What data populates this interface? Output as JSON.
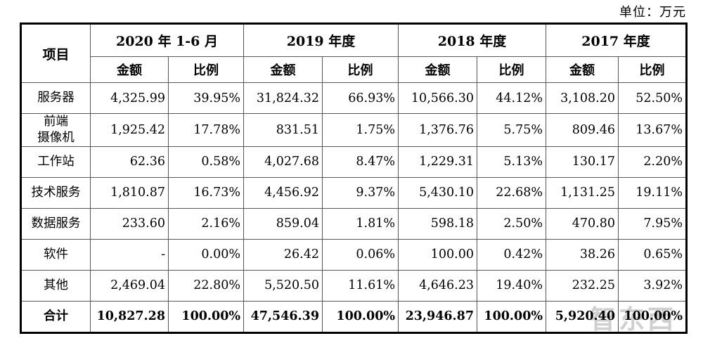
{
  "unit_label": "单位：万元",
  "watermark_text": "智东西",
  "colors": {
    "outer_border": "#000000",
    "inner_border": "#565656",
    "watermark": "#a8a8a8",
    "background": "#ffffff"
  },
  "table": {
    "item_header": "项目",
    "period_headers": [
      "2020 年 1-6 月",
      "2019 年度",
      "2018 年度",
      "2017 年度"
    ],
    "sub_headers": {
      "amount": "金额",
      "ratio": "比例"
    },
    "rows": [
      {
        "item": "服务器",
        "values": [
          "4,325.99",
          "39.95%",
          "31,824.32",
          "66.93%",
          "10,566.30",
          "44.12%",
          "3,108.20",
          "52.50%"
        ]
      },
      {
        "item": "前端\n摄像机",
        "values": [
          "1,925.42",
          "17.78%",
          "831.51",
          "1.75%",
          "1,376.76",
          "5.75%",
          "809.46",
          "13.67%"
        ]
      },
      {
        "item": "工作站",
        "values": [
          "62.36",
          "0.58%",
          "4,027.68",
          "8.47%",
          "1,229.31",
          "5.13%",
          "130.17",
          "2.20%"
        ]
      },
      {
        "item": "技术服务",
        "values": [
          "1,810.87",
          "16.73%",
          "4,456.92",
          "9.37%",
          "5,430.10",
          "22.68%",
          "1,131.25",
          "19.11%"
        ]
      },
      {
        "item": "数据服务",
        "values": [
          "233.60",
          "2.16%",
          "859.04",
          "1.81%",
          "598.18",
          "2.50%",
          "470.80",
          "7.95%"
        ]
      },
      {
        "item": "软件",
        "values": [
          "-",
          "0.00%",
          "26.42",
          "0.06%",
          "100.00",
          "0.42%",
          "38.26",
          "0.65%"
        ]
      },
      {
        "item": "其他",
        "values": [
          "2,469.04",
          "22.80%",
          "5,520.50",
          "11.61%",
          "4,646.23",
          "19.40%",
          "232.25",
          "3.92%"
        ]
      }
    ],
    "total_row": {
      "item": "合计",
      "values": [
        "10,827.28",
        "100.00%",
        "47,546.39",
        "100.00%",
        "23,946.87",
        "100.00%",
        "5,920.40",
        "100.00%"
      ]
    }
  }
}
